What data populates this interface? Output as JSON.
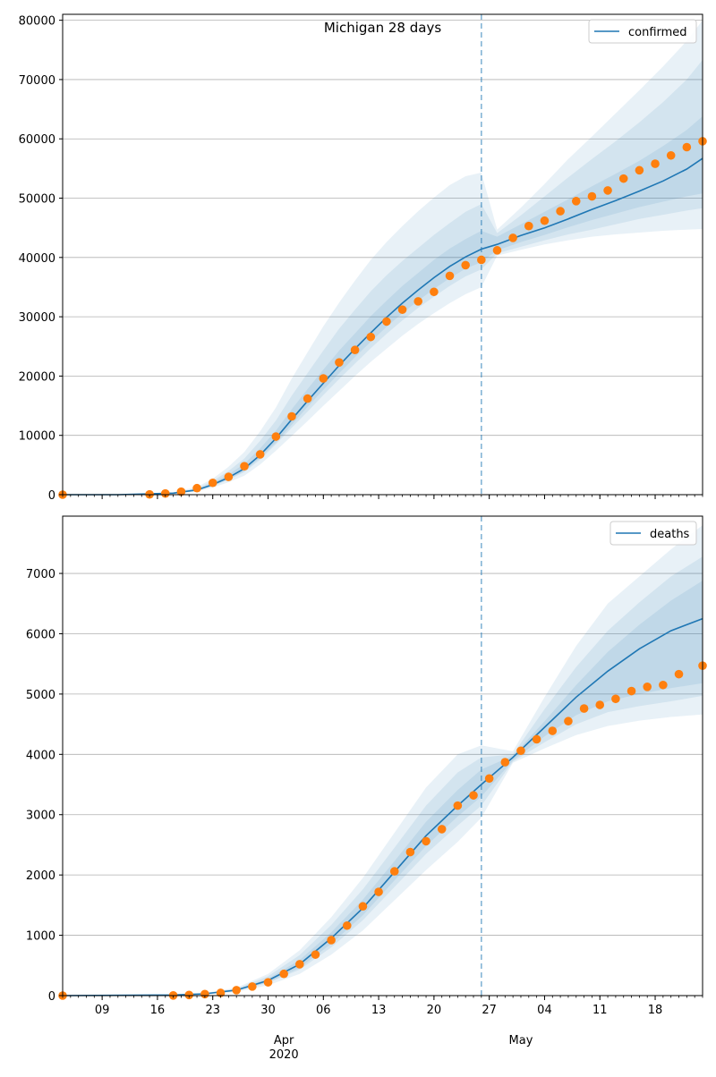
{
  "chart_data": [
    {
      "type": "line",
      "title": "Michigan 28 days",
      "xlabel": "",
      "ylabel": "",
      "x_range": [
        "2020-03-04",
        "2020-05-24"
      ],
      "ylim": [
        0,
        81000
      ],
      "yticks": [
        0,
        10000,
        20000,
        30000,
        40000,
        50000,
        60000,
        70000,
        80000
      ],
      "grid": "horizontal",
      "legend": "top-right",
      "vline_date": "2020-04-26",
      "series": [
        {
          "name": "confirmed",
          "kind": "model-median-with-bands",
          "color": "#1f77b4",
          "x": [
            "2020-03-04",
            "2020-03-11",
            "2020-03-18",
            "2020-03-21",
            "2020-03-23",
            "2020-03-25",
            "2020-03-27",
            "2020-03-29",
            "2020-03-31",
            "2020-04-02",
            "2020-04-04",
            "2020-04-06",
            "2020-04-08",
            "2020-04-10",
            "2020-04-12",
            "2020-04-14",
            "2020-04-16",
            "2020-04-18",
            "2020-04-20",
            "2020-04-22",
            "2020-04-24",
            "2020-04-26",
            "2020-04-28",
            "2020-05-01",
            "2020-05-04",
            "2020-05-07",
            "2020-05-10",
            "2020-05-13",
            "2020-05-16",
            "2020-05-19",
            "2020-05-22",
            "2020-05-24"
          ],
          "median": [
            0,
            0,
            250,
            800,
            1700,
            2900,
            4400,
            6700,
            9500,
            12700,
            15800,
            18800,
            21800,
            24600,
            27300,
            29900,
            32300,
            34500,
            36600,
            38500,
            40100,
            41400,
            42200,
            43700,
            45000,
            46500,
            48100,
            49600,
            51200,
            52900,
            54900,
            56700
          ],
          "bands": [
            {
              "lower": [
                0,
                0,
                200,
                650,
                1450,
                2500,
                3800,
                5900,
                8500,
                11300,
                14000,
                16800,
                19500,
                22100,
                24700,
                27100,
                29400,
                31500,
                33400,
                35200,
                36800,
                38000,
                40700,
                41800,
                42900,
                43900,
                44700,
                45600,
                46500,
                47200,
                47900,
                48300
              ]
            },
            {
              "lower": [
                0,
                0,
                150,
                520,
                1200,
                2100,
                3200,
                5100,
                7400,
                9900,
                12400,
                15000,
                17500,
                20000,
                22400,
                24600,
                26800,
                28800,
                30600,
                32300,
                33800,
                35000,
                40300,
                41300,
                42200,
                42900,
                43500,
                43900,
                44200,
                44500,
                44700,
                44800
              ],
              "upper": [
                0,
                0,
                400,
                1300,
                2700,
                4700,
                7200,
                10700,
                14700,
                19600,
                24000,
                28400,
                32400,
                36100,
                39600,
                42600,
                45300,
                47800,
                50100,
                52200,
                53700,
                54300,
                44700,
                48400,
                52400,
                56600,
                60400,
                64300,
                68200,
                72200,
                76500,
                80000
              ]
            },
            {
              "upper": [
                0,
                0,
                330,
                1100,
                2300,
                4000,
                6100,
                9100,
                12500,
                16700,
                20500,
                24300,
                28000,
                31200,
                34300,
                37000,
                39400,
                41600,
                43800,
                45800,
                47700,
                49000,
                44100,
                47100,
                50300,
                53500,
                56600,
                59600,
                62800,
                66200,
                70000,
                73300
              ]
            },
            {
              "upper": [
                0,
                0,
                280,
                950,
                2000,
                3400,
                5200,
                7800,
                10800,
                14400,
                17800,
                21100,
                24300,
                27200,
                30100,
                32700,
                35200,
                37400,
                39600,
                41500,
                43100,
                44500,
                43500,
                45600,
                47700,
                49800,
                52000,
                54100,
                56300,
                58800,
                61500,
                63800
              ]
            },
            {
              "lower": [
                0,
                0,
                230,
                700,
                1500,
                2600,
                4000,
                6200,
                8800,
                11800,
                14800,
                17700,
                20500,
                23200,
                25800,
                28300,
                30600,
                32700,
                34700,
                36500,
                38100,
                39200,
                41200,
                42600,
                43800,
                45100,
                46300,
                47400,
                48500,
                49400,
                50300,
                50800
              ]
            }
          ]
        },
        {
          "name": "",
          "kind": "observed",
          "color": "#ff7f0e",
          "x": [
            "2020-03-04",
            "2020-03-15",
            "2020-03-17",
            "2020-03-19",
            "2020-03-21",
            "2020-03-23",
            "2020-03-25",
            "2020-03-27",
            "2020-03-29",
            "2020-03-31",
            "2020-04-02",
            "2020-04-04",
            "2020-04-06",
            "2020-04-08",
            "2020-04-10",
            "2020-04-12",
            "2020-04-14",
            "2020-04-16",
            "2020-04-18",
            "2020-04-20",
            "2020-04-22",
            "2020-04-24",
            "2020-04-26",
            "2020-04-28",
            "2020-04-30",
            "2020-05-02",
            "2020-05-04",
            "2020-05-06",
            "2020-05-08",
            "2020-05-10",
            "2020-05-12",
            "2020-05-14",
            "2020-05-16",
            "2020-05-18",
            "2020-05-20",
            "2020-05-22",
            "2020-05-24"
          ],
          "values": [
            0,
            50,
            200,
            500,
            1100,
            2000,
            3000,
            4800,
            6800,
            9800,
            13200,
            16200,
            19600,
            22300,
            24400,
            26600,
            29200,
            31200,
            32600,
            34200,
            36900,
            38700,
            39600,
            41200,
            43300,
            45300,
            46200,
            47800,
            49500,
            50300,
            51300,
            53300,
            54700,
            55800,
            57200,
            58600,
            59600
          ]
        }
      ]
    },
    {
      "type": "line",
      "title": "",
      "xlabel": "",
      "ylabel": "",
      "x_range": [
        "2020-03-04",
        "2020-05-24"
      ],
      "ylim": [
        0,
        7950
      ],
      "yticks": [
        0,
        1000,
        2000,
        3000,
        4000,
        5000,
        6000,
        7000
      ],
      "grid": "horizontal",
      "legend": "top-right",
      "vline_date": "2020-04-26",
      "x_tick_labels": [
        {
          "date": "2020-03-09",
          "label": "09"
        },
        {
          "date": "2020-03-16",
          "label": "16"
        },
        {
          "date": "2020-03-23",
          "label": "23"
        },
        {
          "date": "2020-03-30",
          "label": "30"
        },
        {
          "date": "2020-04-06",
          "label": "06"
        },
        {
          "date": "2020-04-13",
          "label": "13"
        },
        {
          "date": "2020-04-20",
          "label": "20"
        },
        {
          "date": "2020-04-27",
          "label": "27"
        },
        {
          "date": "2020-05-04",
          "label": "04"
        },
        {
          "date": "2020-05-11",
          "label": "11"
        },
        {
          "date": "2020-05-18",
          "label": "18"
        }
      ],
      "x_month_labels": [
        {
          "date": "2020-04-01",
          "label": "Apr",
          "sub": "2020"
        },
        {
          "date": "2020-05-01",
          "label": "May",
          "sub": ""
        }
      ],
      "series": [
        {
          "name": "deaths",
          "kind": "model-median-with-bands",
          "color": "#1f77b4",
          "x": [
            "2020-03-04",
            "2020-03-18",
            "2020-03-22",
            "2020-03-26",
            "2020-03-30",
            "2020-04-03",
            "2020-04-07",
            "2020-04-11",
            "2020-04-15",
            "2020-04-19",
            "2020-04-23",
            "2020-04-26",
            "2020-04-30",
            "2020-05-04",
            "2020-05-08",
            "2020-05-12",
            "2020-05-16",
            "2020-05-20",
            "2020-05-24"
          ],
          "median": [
            0,
            10,
            30,
            90,
            250,
            520,
            950,
            1450,
            2050,
            2650,
            3150,
            3500,
            3950,
            4450,
            4950,
            5380,
            5750,
            6050,
            6250
          ],
          "bands": [
            {
              "lower": [
                0,
                8,
                25,
                75,
                210,
                430,
                800,
                1250,
                1800,
                2350,
                2820,
                3150,
                3880,
                4200,
                4500,
                4700,
                4800,
                4880,
                4970
              ]
            },
            {
              "lower": [
                0,
                6,
                18,
                60,
                170,
                360,
                680,
                1080,
                1580,
                2080,
                2550,
                2950,
                3860,
                4100,
                4320,
                4470,
                4560,
                4620,
                4660
              ],
              "upper": [
                0,
                15,
                45,
                130,
                360,
                750,
                1300,
                1950,
                2700,
                3450,
                4000,
                4150,
                4050,
                4950,
                5800,
                6500,
                6950,
                7400,
                7800
              ]
            },
            {
              "upper": [
                0,
                13,
                40,
                115,
                320,
                670,
                1170,
                1760,
                2450,
                3150,
                3700,
                3950,
                4000,
                4750,
                5450,
                6050,
                6520,
                6950,
                7280
              ]
            },
            {
              "upper": [
                0,
                11,
                34,
                100,
                280,
                590,
                1050,
                1590,
                2230,
                2880,
                3410,
                3750,
                3980,
                4550,
                5150,
                5700,
                6150,
                6550,
                6880
              ]
            },
            {
              "lower": [
                0,
                9,
                27,
                80,
                220,
                460,
                860,
                1330,
                1910,
                2480,
                2970,
                3300,
                3900,
                4300,
                4650,
                4880,
                5000,
                5100,
                5180
              ]
            }
          ]
        },
        {
          "name": "",
          "kind": "observed",
          "color": "#ff7f0e",
          "x": [
            "2020-03-04",
            "2020-03-18",
            "2020-03-20",
            "2020-03-22",
            "2020-03-24",
            "2020-03-26",
            "2020-03-28",
            "2020-03-30",
            "2020-04-01",
            "2020-04-03",
            "2020-04-05",
            "2020-04-07",
            "2020-04-09",
            "2020-04-11",
            "2020-04-13",
            "2020-04-15",
            "2020-04-17",
            "2020-04-19",
            "2020-04-21",
            "2020-04-23",
            "2020-04-25",
            "2020-04-27",
            "2020-04-29",
            "2020-05-01",
            "2020-05-03",
            "2020-05-05",
            "2020-05-07",
            "2020-05-09",
            "2020-05-11",
            "2020-05-13",
            "2020-05-15",
            "2020-05-17",
            "2020-05-19",
            "2020-05-21",
            "2020-05-24"
          ],
          "values": [
            0,
            3,
            10,
            25,
            45,
            90,
            150,
            220,
            360,
            520,
            680,
            920,
            1160,
            1480,
            1720,
            2060,
            2380,
            2560,
            2760,
            3150,
            3320,
            3600,
            3870,
            4060,
            4250,
            4390,
            4550,
            4760,
            4820,
            4920,
            5050,
            5120,
            5150,
            5330,
            5470
          ]
        }
      ]
    }
  ]
}
